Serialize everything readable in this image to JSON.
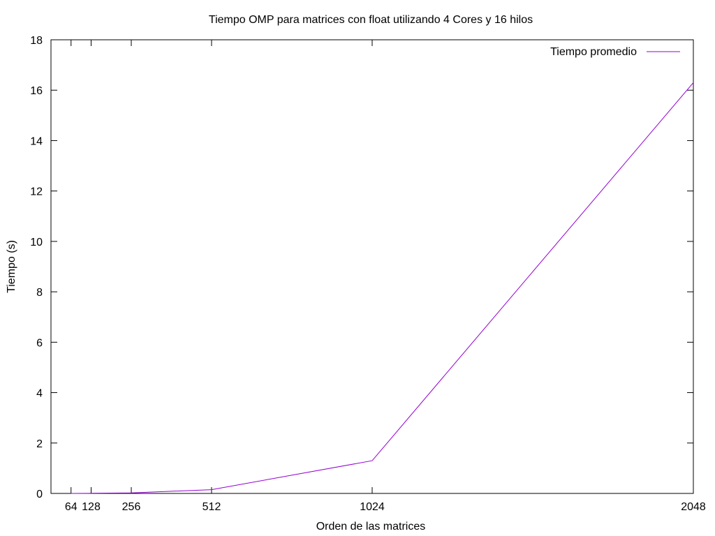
{
  "chart_data": {
    "type": "line",
    "title": "Tiempo OMP para matrices con float utilizando 4 Cores y 16 hilos",
    "xlabel": "Orden de las matrices",
    "ylabel": "Tiempo (s)",
    "xlim": [
      0,
      2048
    ],
    "ylim": [
      0,
      18
    ],
    "xticks": [
      64,
      128,
      256,
      512,
      1024,
      2048
    ],
    "yticks": [
      0,
      2,
      4,
      6,
      8,
      10,
      12,
      14,
      16,
      18
    ],
    "grid": false,
    "legend_position": "top-right",
    "series": [
      {
        "name": "Tiempo promedio",
        "color": "#9400d3",
        "x": [
          64,
          128,
          256,
          512,
          1024,
          2048
        ],
        "y": [
          0.001,
          0.005,
          0.02,
          0.15,
          1.3,
          16.3
        ]
      }
    ]
  }
}
